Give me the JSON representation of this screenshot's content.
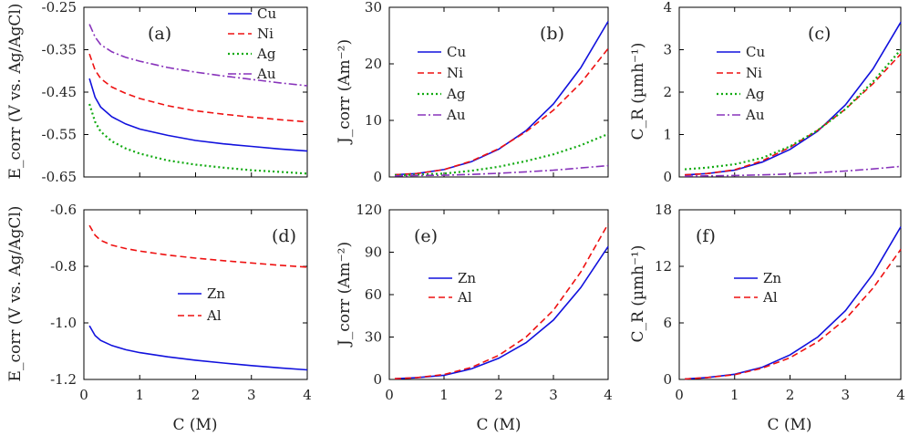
{
  "figure": {
    "xlabel": "C (M)",
    "ylabels": {
      "ecorr": "E_corr (V vs. Ag/AgCl)",
      "jcorr": "J_corr (Am⁻²)",
      "cr": "C_R (µmh⁻¹)"
    }
  },
  "colors": {
    "Cu": "#1111dd",
    "Ni": "#ee1111",
    "Ag": "#11aa11",
    "Au": "#8833bb",
    "Zn": "#1111dd",
    "Al": "#ee1111"
  },
  "chart_data": [
    {
      "id": "a",
      "panel_label": "(a)",
      "type": "line",
      "xlim": [
        0,
        4
      ],
      "ylim": [
        -0.65,
        -0.25
      ],
      "xticks": [
        "0",
        "1",
        "2",
        "3",
        "4"
      ],
      "yticks": [
        "-0.25",
        "-0.35",
        "-0.45",
        "-0.55",
        "-0.65"
      ],
      "legend_position": "top-right",
      "series": [
        {
          "name": "Cu",
          "x": [
            0.1,
            0.2,
            0.3,
            0.5,
            0.75,
            1,
            1.5,
            2,
            2.5,
            3,
            3.5,
            4
          ],
          "y": [
            -0.418,
            -0.462,
            -0.485,
            -0.508,
            -0.525,
            -0.537,
            -0.552,
            -0.564,
            -0.572,
            -0.578,
            -0.584,
            -0.589
          ]
        },
        {
          "name": "Ni",
          "x": [
            0.1,
            0.2,
            0.3,
            0.5,
            0.75,
            1,
            1.5,
            2,
            2.5,
            3,
            3.5,
            4
          ],
          "y": [
            -0.36,
            -0.398,
            -0.418,
            -0.438,
            -0.453,
            -0.465,
            -0.482,
            -0.494,
            -0.502,
            -0.509,
            -0.515,
            -0.52
          ]
        },
        {
          "name": "Ag",
          "x": [
            0.1,
            0.2,
            0.3,
            0.5,
            0.75,
            1,
            1.5,
            2,
            2.5,
            3,
            3.5,
            4
          ],
          "y": [
            -0.478,
            -0.52,
            -0.543,
            -0.566,
            -0.583,
            -0.595,
            -0.611,
            -0.621,
            -0.628,
            -0.634,
            -0.638,
            -0.642
          ]
        },
        {
          "name": "Au",
          "x": [
            0.1,
            0.2,
            0.3,
            0.5,
            0.75,
            1,
            1.5,
            2,
            2.5,
            3,
            3.5,
            4
          ],
          "y": [
            -0.29,
            -0.32,
            -0.338,
            -0.355,
            -0.368,
            -0.377,
            -0.392,
            -0.403,
            -0.412,
            -0.42,
            -0.428,
            -0.435
          ]
        }
      ]
    },
    {
      "id": "b",
      "panel_label": "(b)",
      "type": "line",
      "xlim": [
        0,
        4
      ],
      "ylim": [
        0,
        30
      ],
      "xticks": [
        "0",
        "1",
        "2",
        "3",
        "4"
      ],
      "yticks": [
        "0",
        "10",
        "20",
        "30"
      ],
      "ylabel": "J_corr (Am⁻²)",
      "legend_position": "left",
      "series": [
        {
          "name": "Cu",
          "x": [
            0.1,
            0.5,
            1,
            1.5,
            2,
            2.5,
            3,
            3.5,
            4
          ],
          "y": [
            0.4,
            0.6,
            1.3,
            2.7,
            4.9,
            8.2,
            12.9,
            19.3,
            27.5
          ]
        },
        {
          "name": "Ni",
          "x": [
            0.1,
            0.5,
            1,
            1.5,
            2,
            2.5,
            3,
            3.5,
            4
          ],
          "y": [
            0.4,
            0.6,
            1.3,
            2.8,
            5.0,
            8.0,
            11.8,
            16.6,
            22.7
          ]
        },
        {
          "name": "Ag",
          "x": [
            0.1,
            0.5,
            1,
            1.5,
            2,
            2.5,
            3,
            3.5,
            4
          ],
          "y": [
            0.3,
            0.4,
            0.6,
            1.1,
            1.8,
            2.8,
            4.0,
            5.6,
            7.6
          ]
        },
        {
          "name": "Au",
          "x": [
            0.1,
            0.5,
            1,
            1.5,
            2,
            2.5,
            3,
            3.5,
            4
          ],
          "y": [
            0.2,
            0.25,
            0.3,
            0.45,
            0.65,
            0.9,
            1.2,
            1.6,
            2.0
          ]
        }
      ]
    },
    {
      "id": "c",
      "panel_label": "(c)",
      "type": "line",
      "xlim": [
        0,
        4
      ],
      "ylim": [
        0,
        4
      ],
      "xticks": [
        "0",
        "1",
        "2",
        "3",
        "4"
      ],
      "yticks": [
        "0",
        "1",
        "2",
        "3",
        "4"
      ],
      "ylabel": "C_R (µmh⁻¹)",
      "legend_position": "left",
      "series": [
        {
          "name": "Cu",
          "x": [
            0.1,
            0.5,
            1,
            1.5,
            2,
            2.5,
            3,
            3.5,
            4
          ],
          "y": [
            0.05,
            0.08,
            0.16,
            0.35,
            0.65,
            1.08,
            1.7,
            2.55,
            3.65
          ]
        },
        {
          "name": "Ni",
          "x": [
            0.1,
            0.5,
            1,
            1.5,
            2,
            2.5,
            3,
            3.5,
            4
          ],
          "y": [
            0.05,
            0.08,
            0.17,
            0.38,
            0.7,
            1.1,
            1.6,
            2.2,
            2.9
          ]
        },
        {
          "name": "Ag",
          "x": [
            0.1,
            0.5,
            1,
            1.5,
            2,
            2.5,
            3,
            3.5,
            4
          ],
          "y": [
            0.18,
            0.22,
            0.3,
            0.45,
            0.72,
            1.1,
            1.6,
            2.25,
            3.0
          ]
        },
        {
          "name": "Au",
          "x": [
            0.1,
            0.5,
            1,
            1.5,
            2,
            2.5,
            3,
            3.5,
            4
          ],
          "y": [
            0.02,
            0.025,
            0.035,
            0.05,
            0.07,
            0.1,
            0.14,
            0.19,
            0.25
          ]
        }
      ]
    },
    {
      "id": "d",
      "panel_label": "(d)",
      "type": "line",
      "xlim": [
        0,
        4
      ],
      "ylim": [
        -1.2,
        -0.6
      ],
      "xticks": [
        "0",
        "1",
        "2",
        "3",
        "4"
      ],
      "yticks": [
        "-0.6",
        "-0.8",
        "-1.0",
        "-1.2"
      ],
      "legend_position": "center",
      "series": [
        {
          "name": "Zn",
          "x": [
            0.1,
            0.2,
            0.3,
            0.5,
            0.75,
            1,
            1.5,
            2,
            2.5,
            3,
            3.5,
            4
          ],
          "y": [
            -1.01,
            -1.045,
            -1.062,
            -1.08,
            -1.095,
            -1.105,
            -1.12,
            -1.132,
            -1.142,
            -1.151,
            -1.159,
            -1.166
          ]
        },
        {
          "name": "Al",
          "x": [
            0.1,
            0.2,
            0.3,
            0.5,
            0.75,
            1,
            1.5,
            2,
            2.5,
            3,
            3.5,
            4
          ],
          "y": [
            -0.655,
            -0.69,
            -0.708,
            -0.725,
            -0.737,
            -0.746,
            -0.76,
            -0.771,
            -0.78,
            -0.788,
            -0.796,
            -0.803
          ]
        }
      ]
    },
    {
      "id": "e",
      "panel_label": "(e)",
      "type": "line",
      "xlim": [
        0,
        4
      ],
      "ylim": [
        0,
        120
      ],
      "xticks": [
        "0",
        "1",
        "2",
        "3",
        "4"
      ],
      "yticks": [
        "0",
        "30",
        "60",
        "90",
        "120"
      ],
      "ylabel": "J_corr (Am⁻²)",
      "legend_position": "left",
      "series": [
        {
          "name": "Zn",
          "x": [
            0.1,
            0.5,
            1,
            1.5,
            2,
            2.5,
            3,
            3.5,
            4
          ],
          "y": [
            0.5,
            1.2,
            3.0,
            7.5,
            15.0,
            26.0,
            42.0,
            65.0,
            94.0
          ]
        },
        {
          "name": "Al",
          "x": [
            0.1,
            0.5,
            1,
            1.5,
            2,
            2.5,
            3,
            3.5,
            4
          ],
          "y": [
            0.5,
            1.3,
            3.5,
            8.5,
            17.0,
            30.0,
            49.0,
            76.0,
            110.0
          ]
        }
      ]
    },
    {
      "id": "f",
      "panel_label": "(f)",
      "type": "line",
      "xlim": [
        0,
        4
      ],
      "ylim": [
        0,
        18
      ],
      "xticks": [
        "0",
        "1",
        "2",
        "3",
        "4"
      ],
      "yticks": [
        "0",
        "6",
        "12",
        "18"
      ],
      "ylabel": "C_R (µmh⁻¹)",
      "legend_position": "left",
      "series": [
        {
          "name": "Zn",
          "x": [
            0.1,
            0.5,
            1,
            1.5,
            2,
            2.5,
            3,
            3.5,
            4
          ],
          "y": [
            0.05,
            0.2,
            0.55,
            1.3,
            2.6,
            4.5,
            7.3,
            11.2,
            16.2
          ]
        },
        {
          "name": "Al",
          "x": [
            0.1,
            0.5,
            1,
            1.5,
            2,
            2.5,
            3,
            3.5,
            4
          ],
          "y": [
            0.05,
            0.2,
            0.5,
            1.2,
            2.3,
            4.0,
            6.4,
            9.7,
            13.8
          ]
        }
      ]
    }
  ]
}
